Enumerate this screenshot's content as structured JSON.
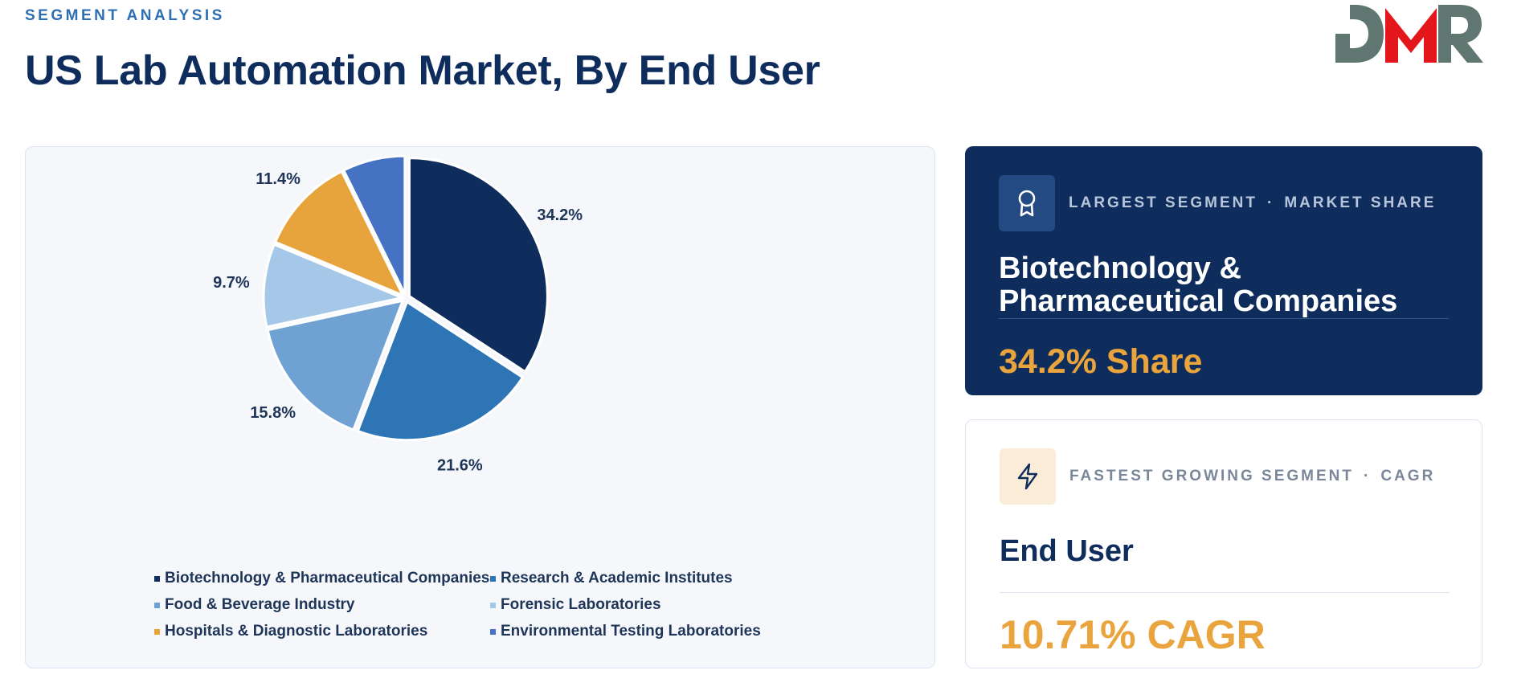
{
  "header": {
    "eyebrow": "SEGMENT ANALYSIS",
    "title": "US Lab Automation Market, By End User"
  },
  "logo": {
    "text": "DMR",
    "colors": {
      "primary": "#5f7671",
      "accent": "#e3161b"
    }
  },
  "chart_data": {
    "type": "pie",
    "title": "",
    "start_angle_deg": 0,
    "direction": "clockwise",
    "slices": [
      {
        "label": "Biotechnology & Pharmaceutical Companies",
        "value": 34.2,
        "display": "34.2%",
        "color": "#0f2d5c"
      },
      {
        "label": "Research & Academic Institutes",
        "value": 21.6,
        "display": "21.6%",
        "color": "#2e75b6"
      },
      {
        "label": "Food & Beverage Industry",
        "value": 15.8,
        "display": "15.8%",
        "color": "#6fa1d2"
      },
      {
        "label": "Forensic Laboratories",
        "value": 9.7,
        "display": "9.7%",
        "color": "#a5c7e8"
      },
      {
        "label": "Hospitals & Diagnostic Laboratories",
        "value": 11.4,
        "display": "11.4%",
        "color": "#e8a43c"
      },
      {
        "label": "Environmental Testing Laboratories",
        "value": 7.3,
        "display": "7.3%",
        "color": "#4672c4"
      }
    ],
    "legend_position": "bottom"
  },
  "largest_segment": {
    "kicker_left": "LARGEST SEGMENT",
    "separator": "·",
    "kicker_right": "MARKET SHARE",
    "name": "Biotechnology & Pharmaceutical Companies",
    "metric": "34.2% Share",
    "icon": "award-icon"
  },
  "fastest_segment": {
    "kicker_left": "FASTEST GROWING SEGMENT",
    "separator": "·",
    "kicker_right": "CAGR",
    "name": "End User",
    "metric": "10.71% CAGR",
    "icon": "lightning-icon"
  }
}
